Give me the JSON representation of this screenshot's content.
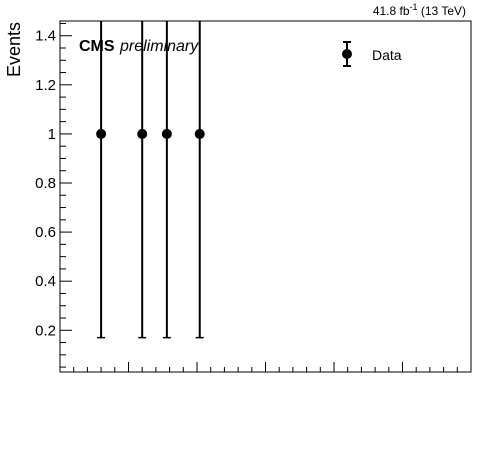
{
  "chart_data": {
    "type": "scatter",
    "ylabel": "Events",
    "xlabel": "",
    "ylim": [
      0.03,
      1.46
    ],
    "y_ticks": [
      "0.2",
      "0.4",
      "0.6",
      "0.8",
      "1",
      "1.2",
      "1.4"
    ],
    "lumi_label": "41.8 fb",
    "lumi_sup": "-1",
    "lumi_suffix": " (13 TeV)",
    "cms_label": "CMS",
    "preliminary_label": "preliminary",
    "legend": [
      {
        "label": "Data",
        "marker": "circle-errorbar"
      }
    ],
    "series": [
      {
        "name": "Data",
        "color": "#000000",
        "points": [
          {
            "x": 0.1,
            "y": 1,
            "err_low": 0.83,
            "err_high": 1.0
          },
          {
            "x": 0.2,
            "y": 1,
            "err_low": 0.83,
            "err_high": 1.0
          },
          {
            "x": 0.26,
            "y": 1,
            "err_low": 0.83,
            "err_high": 1.0
          },
          {
            "x": 0.34,
            "y": 1,
            "err_low": 0.83,
            "err_high": 1.0
          }
        ]
      }
    ],
    "grid": false,
    "legend_position": "top-right"
  }
}
